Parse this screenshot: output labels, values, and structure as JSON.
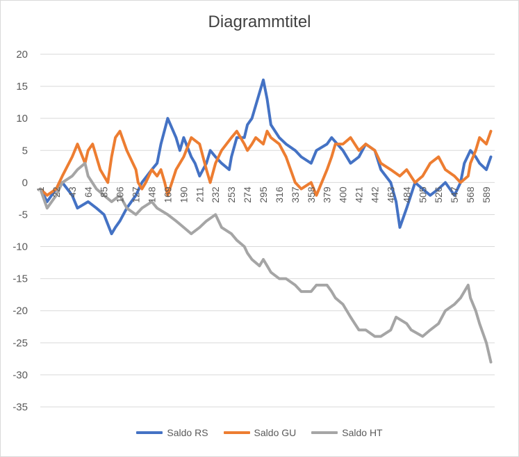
{
  "chart_data": {
    "type": "line",
    "title": "Diagrammtitel",
    "xlabel": "",
    "ylabel": "",
    "ylim": [
      -35,
      20
    ],
    "yticks": [
      20,
      15,
      10,
      5,
      0,
      -5,
      -10,
      -15,
      -20,
      -25,
      -30,
      -35
    ],
    "xlim": [
      1,
      600
    ],
    "xticks": [
      1,
      22,
      43,
      64,
      85,
      106,
      127,
      148,
      169,
      190,
      211,
      232,
      253,
      274,
      295,
      316,
      337,
      358,
      379,
      400,
      421,
      442,
      463,
      484,
      505,
      526,
      547,
      568,
      589
    ],
    "legend_position": "bottom",
    "grid": true,
    "series": [
      {
        "name": "Saldo RS",
        "color": "#4472c4",
        "x": [
          1,
          10,
          22,
          30,
          43,
          50,
          64,
          75,
          85,
          95,
          100,
          106,
          115,
          127,
          135,
          148,
          155,
          160,
          169,
          180,
          185,
          190,
          200,
          205,
          211,
          220,
          225,
          232,
          240,
          250,
          253,
          260,
          270,
          274,
          280,
          290,
          295,
          300,
          305,
          316,
          325,
          337,
          345,
          358,
          365,
          379,
          385,
          400,
          410,
          421,
          430,
          442,
          450,
          463,
          470,
          475,
          484,
          495,
          505,
          515,
          526,
          535,
          547,
          555,
          560,
          568,
          575,
          580,
          589,
          595
        ],
        "y": [
          -1,
          -3,
          -1,
          0,
          -2,
          -4,
          -3,
          -4,
          -5,
          -8,
          -7,
          -6,
          -4,
          -2,
          0,
          2,
          3,
          6,
          10,
          7,
          5,
          7,
          4,
          3,
          1,
          3,
          5,
          4,
          3,
          2,
          4,
          7,
          7,
          9,
          10,
          14,
          16,
          13,
          9,
          7,
          6,
          5,
          4,
          3,
          5,
          6,
          7,
          5,
          3,
          4,
          6,
          5,
          2,
          0,
          -3,
          -7,
          -4,
          0,
          -1,
          -2,
          -1,
          0,
          -2,
          0,
          3,
          5,
          4,
          3,
          2,
          4
        ]
      },
      {
        "name": "Saldo GU",
        "color": "#ed7d31",
        "x": [
          1,
          10,
          22,
          30,
          43,
          50,
          60,
          64,
          70,
          80,
          85,
          90,
          95,
          100,
          106,
          115,
          127,
          130,
          135,
          140,
          148,
          155,
          160,
          165,
          169,
          180,
          190,
          200,
          211,
          220,
          225,
          232,
          240,
          253,
          260,
          270,
          274,
          280,
          285,
          295,
          300,
          305,
          316,
          325,
          337,
          345,
          358,
          365,
          379,
          385,
          390,
          400,
          410,
          421,
          430,
          442,
          450,
          463,
          475,
          484,
          495,
          505,
          515,
          526,
          535,
          547,
          555,
          565,
          568,
          575,
          580,
          589,
          595
        ],
        "y": [
          -1,
          -2,
          -1,
          1,
          4,
          6,
          3,
          5,
          6,
          2,
          1,
          0,
          4,
          7,
          8,
          5,
          2,
          0,
          -1,
          0,
          2,
          1,
          2,
          0,
          -2,
          2,
          4,
          7,
          6,
          2,
          0,
          3,
          5,
          7,
          8,
          6,
          5,
          6,
          7,
          6,
          8,
          7,
          6,
          4,
          0,
          -1,
          0,
          -2,
          2,
          4,
          6,
          6,
          7,
          5,
          6,
          5,
          3,
          2,
          1,
          2,
          0,
          1,
          3,
          4,
          2,
          1,
          0,
          1,
          3,
          5,
          7,
          6,
          8
        ]
      },
      {
        "name": "Saldo HT",
        "color": "#a5a5a5",
        "x": [
          1,
          10,
          22,
          30,
          43,
          50,
          60,
          64,
          75,
          85,
          95,
          106,
          115,
          127,
          135,
          148,
          155,
          169,
          180,
          190,
          200,
          211,
          220,
          232,
          240,
          253,
          260,
          270,
          274,
          280,
          290,
          295,
          300,
          305,
          316,
          325,
          337,
          345,
          358,
          365,
          379,
          385,
          390,
          400,
          410,
          421,
          430,
          442,
          450,
          463,
          470,
          484,
          490,
          505,
          515,
          526,
          535,
          547,
          555,
          565,
          568,
          575,
          580,
          589,
          595
        ],
        "y": [
          -1,
          -4,
          -2,
          0,
          1,
          2,
          3,
          1,
          -1,
          -2,
          -3,
          -2,
          -4,
          -5,
          -4,
          -3,
          -4,
          -5,
          -6,
          -7,
          -8,
          -7,
          -6,
          -5,
          -7,
          -8,
          -9,
          -10,
          -11,
          -12,
          -13,
          -12,
          -13,
          -14,
          -15,
          -15,
          -16,
          -17,
          -17,
          -16,
          -16,
          -17,
          -18,
          -19,
          -21,
          -23,
          -23,
          -24,
          -24,
          -23,
          -21,
          -22,
          -23,
          -24,
          -23,
          -22,
          -20,
          -19,
          -18,
          -16,
          -18,
          -20,
          -22,
          -25,
          -28
        ]
      }
    ]
  }
}
